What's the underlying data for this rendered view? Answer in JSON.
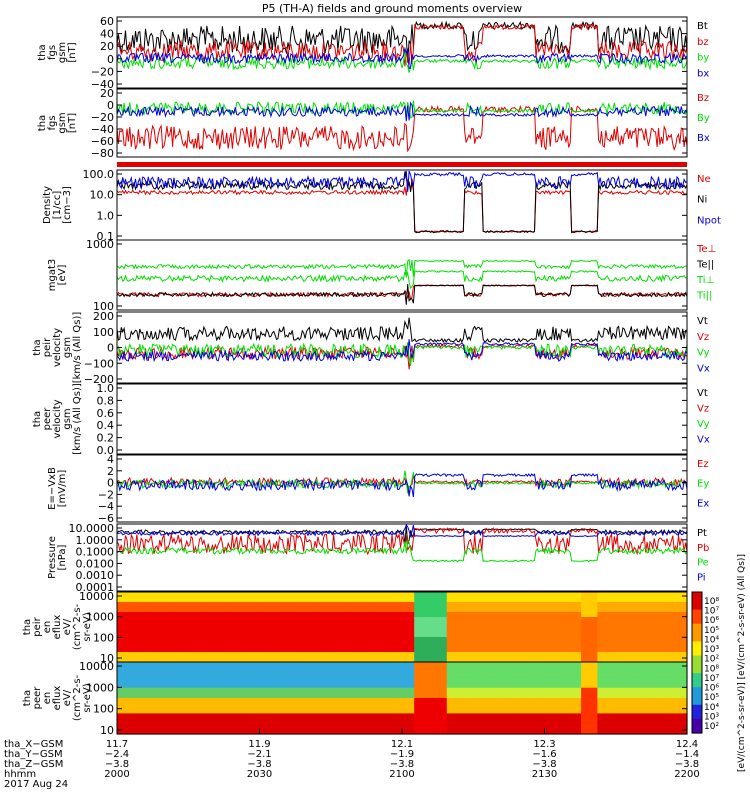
{
  "title": "P5 (TH-A) fields and ground moments overview",
  "colors": {
    "black": "#000000",
    "red": "#e10000",
    "green": "#00e000",
    "blue": "#0000e0"
  },
  "chart_data": [
    {
      "type": "line",
      "panel": "fgs_gsm",
      "ylabel": [
        "tha",
        "fgs",
        "gsm",
        "[nT]"
      ],
      "ylim": [
        -40,
        60
      ],
      "ytick_labels": [
        "60",
        "40",
        "20",
        "0",
        "−20",
        "−40"
      ],
      "series": [
        {
          "name": "Bt",
          "color": "black"
        },
        {
          "name": "bz",
          "color": "red"
        },
        {
          "name": "by",
          "color": "green"
        },
        {
          "name": "bx",
          "color": "blue"
        }
      ]
    },
    {
      "type": "line",
      "panel": "fgs_gsm_sm",
      "ylabel": [
        "tha",
        "fgs",
        "gsm",
        "[nT]"
      ],
      "ylim": [
        -80,
        20
      ],
      "ytick_labels": [
        "20",
        "0",
        "−20",
        "−40",
        "−60",
        "−80"
      ],
      "series": [
        {
          "name": "Bz",
          "color": "red"
        },
        {
          "name": "By",
          "color": "green"
        },
        {
          "name": "Bx",
          "color": "blue"
        }
      ]
    },
    {
      "type": "line",
      "panel": "density",
      "ylabel": [
        "Density",
        "[1/cc]",
        "[cm−3]"
      ],
      "ylim": [
        0.1,
        100
      ],
      "log": true,
      "ytick_labels": [
        "100.0",
        "10.0",
        "1.0",
        "0.1"
      ],
      "series": [
        {
          "name": "Ne",
          "color": "red"
        },
        {
          "name": "Ni",
          "color": "black"
        },
        {
          "name": "Npot",
          "color": "blue"
        }
      ]
    },
    {
      "type": "line",
      "panel": "temperature",
      "ylabel": [
        "mgat3",
        "[eV]"
      ],
      "ylim": [
        30,
        3000
      ],
      "log": true,
      "ytick_labels": [
        "1000",
        "100"
      ],
      "series": [
        {
          "name": "Te⊥",
          "color": "red"
        },
        {
          "name": "Te||",
          "color": "black"
        },
        {
          "name": "Ti⊥",
          "color": "green"
        },
        {
          "name": "Ti||",
          "color": "green"
        }
      ]
    },
    {
      "type": "line",
      "panel": "peir_velocity",
      "ylabel": [
        "tha",
        "peir",
        "velocity",
        "gsm",
        "[km/s (All Qs)]"
      ],
      "ylim": [
        -200,
        200
      ],
      "ytick_labels": [
        "200",
        "100",
        "0",
        "−100",
        "−200"
      ],
      "series": [
        {
          "name": "Vt",
          "color": "black"
        },
        {
          "name": "Vz",
          "color": "red"
        },
        {
          "name": "Vy",
          "color": "green"
        },
        {
          "name": "Vx",
          "color": "blue"
        }
      ]
    },
    {
      "type": "line",
      "panel": "peer_velocity",
      "ylabel": [
        "tha",
        "peer",
        "velocity",
        "gsm",
        "[km/s (All Qs)]"
      ],
      "ylim": [
        0,
        1
      ],
      "ytick_labels": [
        "1.0",
        "0.8",
        "0.6",
        "0.4",
        "0.2",
        "0.0"
      ],
      "series": [
        {
          "name": "Vt",
          "color": "black"
        },
        {
          "name": "Vz",
          "color": "red"
        },
        {
          "name": "Vy",
          "color": "green"
        },
        {
          "name": "Vx",
          "color": "blue"
        }
      ]
    },
    {
      "type": "line",
      "panel": "efield",
      "ylabel": [
        "E=−VxB",
        "[mV/m]"
      ],
      "ylim": [
        -6,
        4
      ],
      "ytick_labels": [
        "4",
        "2",
        "0",
        "−2",
        "−4",
        "−6"
      ],
      "series": [
        {
          "name": "Ez",
          "color": "red"
        },
        {
          "name": "Ey",
          "color": "green"
        },
        {
          "name": "Ex",
          "color": "blue"
        }
      ]
    },
    {
      "type": "line",
      "panel": "pressure",
      "ylabel": [
        "Pressure",
        "[nPa]"
      ],
      "ylim": [
        0.0001,
        10
      ],
      "log": true,
      "ytick_labels": [
        "10.0000",
        "1.0000",
        "0.1000",
        "0.0100",
        "0.0010",
        "0.0001"
      ],
      "series": [
        {
          "name": "Pt",
          "color": "black"
        },
        {
          "name": "Pb",
          "color": "red"
        },
        {
          "name": "Pe",
          "color": "green"
        },
        {
          "name": "Pi",
          "color": "blue"
        }
      ]
    },
    {
      "type": "heatmap",
      "panel": "peir_en_eflux",
      "ylabel": [
        "tha",
        "peir",
        "en",
        "eflux",
        "eV/",
        "(cm^2-s-",
        "sr-eV)"
      ],
      "ylim": [
        5,
        30000
      ],
      "log": true,
      "ytick_labels": [
        "10000",
        "1000",
        "100",
        "10"
      ]
    },
    {
      "type": "heatmap",
      "panel": "peer_en_eflux",
      "ylabel": [
        "tha",
        "peer",
        "en",
        "eflux",
        "eV/",
        "(cm^2-s-",
        "sr-eV)"
      ],
      "ylim": [
        5,
        30000
      ],
      "log": true,
      "ytick_labels": [
        "10000",
        "1000",
        "100",
        "10"
      ]
    }
  ],
  "colorbar": {
    "label": "[eV/(cm^2-s-sr-eV)]  [eV/(cm^2-s-sr-eV) (All Qs)]",
    "ticks": [
      "10⁸",
      "10⁷",
      "10⁶",
      "10⁵",
      "10⁴",
      "10³",
      "10²",
      "10⁸",
      "10⁷",
      "10⁶",
      "10⁵",
      "10⁴",
      "10³",
      "10²"
    ]
  },
  "xaxis": {
    "row_labels": [
      "tha_X−GSM",
      "tha_Y−GSM",
      "tha_Z−GSM",
      "hhmm",
      "2017 Aug 24"
    ],
    "ticks": [
      {
        "x": "11.7",
        "y": "−2.4",
        "z": "−3.8",
        "hhmm": "2000"
      },
      {
        "x": "11.9",
        "y": "−2.1",
        "z": "−3.8",
        "hhmm": "2030"
      },
      {
        "x": "12.1",
        "y": "−1.9",
        "z": "−3.8",
        "hhmm": "2100"
      },
      {
        "x": "12.3",
        "y": "−1.6",
        "z": "−3.8",
        "hhmm": "2130"
      },
      {
        "x": "12.4",
        "y": "−1.4",
        "z": "−3.8",
        "hhmm": "2200"
      }
    ]
  }
}
